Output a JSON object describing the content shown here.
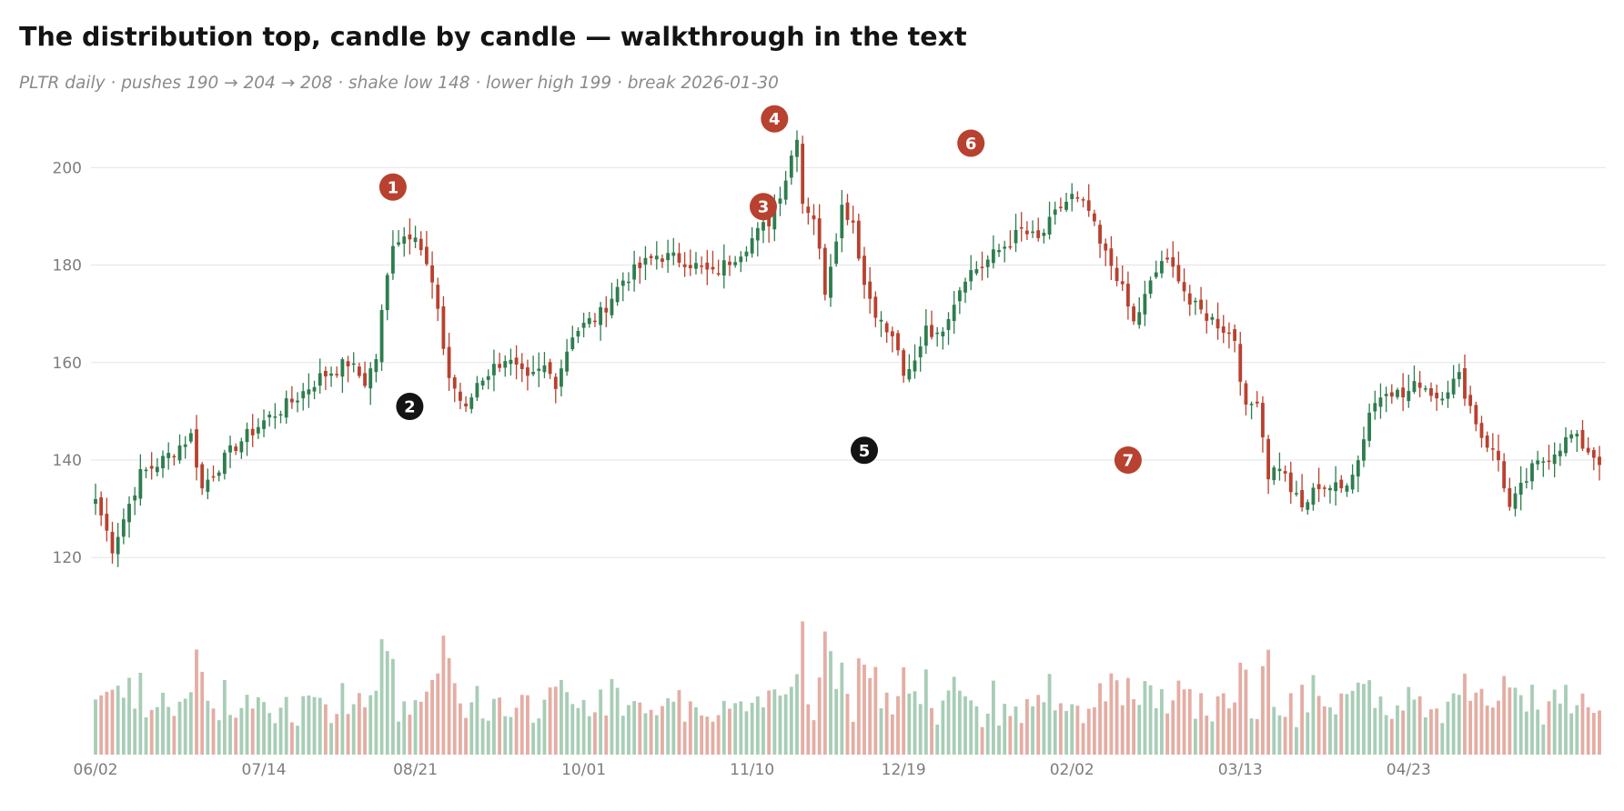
{
  "title": "The distribution top, candle by candle — walkthrough in the text",
  "subtitle": "PLTR daily · pushes 190 → 204 → 208 · shake low 148 · lower high 199 · break 2026-01-30",
  "colors": {
    "up": "#2e7d4f",
    "down": "#b8412f",
    "up_volume": "#a8cdb6",
    "down_volume": "#e4ada3",
    "marker_red": "#b8412f",
    "marker_black": "#141414",
    "grid": "#e4e4e4",
    "text": "#7d7d7d"
  },
  "chart_data": {
    "type": "candlestick",
    "ylim": [
      115,
      212
    ],
    "yticks": [
      120,
      140,
      160,
      180,
      200
    ],
    "grid": "horizontal",
    "x_tick_labels": [
      {
        "index": 0,
        "label": "06/02"
      },
      {
        "index": 30,
        "label": "07/14"
      },
      {
        "index": 57,
        "label": "08/21"
      },
      {
        "index": 87,
        "label": "10/01"
      },
      {
        "index": 117,
        "label": "11/10"
      },
      {
        "index": 144,
        "label": "12/19"
      },
      {
        "index": 174,
        "label": "02/02"
      },
      {
        "index": 204,
        "label": "03/13"
      },
      {
        "index": 234,
        "label": "04/23"
      }
    ],
    "path": [
      [
        0,
        132
      ],
      [
        3,
        122
      ],
      [
        8,
        137
      ],
      [
        12,
        140
      ],
      [
        17,
        145
      ],
      [
        19,
        134
      ],
      [
        20,
        136
      ],
      [
        25,
        143
      ],
      [
        30,
        148
      ],
      [
        35,
        152
      ],
      [
        40,
        157
      ],
      [
        45,
        160
      ],
      [
        48,
        156
      ],
      [
        50,
        161
      ],
      [
        51,
        170
      ],
      [
        53,
        185
      ],
      [
        57,
        187
      ],
      [
        60,
        176
      ],
      [
        63,
        157
      ],
      [
        66,
        150
      ],
      [
        68,
        156
      ],
      [
        73,
        161
      ],
      [
        77,
        156
      ],
      [
        80,
        159
      ],
      [
        82,
        156
      ],
      [
        85,
        166
      ],
      [
        90,
        170
      ],
      [
        94,
        177
      ],
      [
        100,
        182
      ],
      [
        105,
        181
      ],
      [
        110,
        178
      ],
      [
        115,
        183
      ],
      [
        120,
        189
      ],
      [
        123,
        198
      ],
      [
        125,
        207
      ],
      [
        126,
        193
      ],
      [
        128,
        190
      ],
      [
        130,
        175
      ],
      [
        133,
        192
      ],
      [
        135,
        189
      ],
      [
        137,
        176
      ],
      [
        140,
        168
      ],
      [
        143,
        163
      ],
      [
        144,
        156
      ],
      [
        146,
        160
      ],
      [
        148,
        168
      ],
      [
        150,
        165
      ],
      [
        155,
        178
      ],
      [
        158,
        180
      ],
      [
        163,
        185
      ],
      [
        165,
        187
      ],
      [
        168,
        185
      ],
      [
        172,
        192
      ],
      [
        174,
        194
      ],
      [
        177,
        191
      ],
      [
        179,
        184
      ],
      [
        182,
        178
      ],
      [
        185,
        168
      ],
      [
        188,
        176
      ],
      [
        190,
        181
      ],
      [
        193,
        178
      ],
      [
        195,
        172
      ],
      [
        200,
        168
      ],
      [
        203,
        165
      ],
      [
        205,
        150
      ],
      [
        207,
        153
      ],
      [
        209,
        137
      ],
      [
        211,
        139
      ],
      [
        213,
        134
      ],
      [
        215,
        130
      ],
      [
        218,
        135
      ],
      [
        222,
        134
      ],
      [
        225,
        140
      ],
      [
        227,
        150
      ],
      [
        230,
        155
      ],
      [
        233,
        153
      ],
      [
        236,
        156
      ],
      [
        239,
        153
      ],
      [
        243,
        157
      ],
      [
        246,
        148
      ],
      [
        247,
        145
      ],
      [
        250,
        140
      ],
      [
        252,
        130
      ],
      [
        254,
        134
      ],
      [
        256,
        138
      ],
      [
        260,
        142
      ],
      [
        263,
        145
      ],
      [
        266,
        142
      ],
      [
        268,
        140
      ]
    ],
    "markers": [
      {
        "index": 53,
        "price": 196,
        "label": "1",
        "color": "red"
      },
      {
        "index": 56,
        "price": 151,
        "label": "2",
        "color": "black"
      },
      {
        "index": 119,
        "price": 192,
        "label": "3",
        "color": "red"
      },
      {
        "index": 121,
        "price": 210,
        "label": "4",
        "color": "red"
      },
      {
        "index": 137,
        "price": 142,
        "label": "5",
        "color": "black"
      },
      {
        "index": 156,
        "price": 205,
        "label": "6",
        "color": "red"
      },
      {
        "index": 184,
        "price": 140,
        "label": "7",
        "color": "red"
      }
    ]
  }
}
